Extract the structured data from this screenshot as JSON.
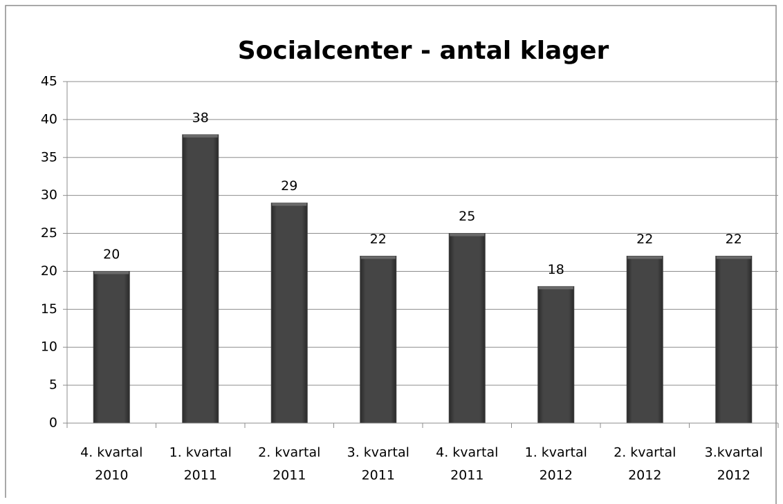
{
  "chart_data": {
    "type": "bar",
    "title": "Socialcenter - antal klager",
    "categories": [
      [
        "4. kvartal",
        "2010"
      ],
      [
        "1. kvartal",
        "2011"
      ],
      [
        "2. kvartal",
        "2011"
      ],
      [
        "3. kvartal",
        "2011"
      ],
      [
        "4. kvartal",
        "2011"
      ],
      [
        "1. kvartal",
        "2012"
      ],
      [
        "2. kvartal",
        "2012"
      ],
      [
        "3.kvartal",
        "2012"
      ]
    ],
    "values": [
      20,
      38,
      29,
      22,
      25,
      18,
      22,
      22
    ],
    "color": "#404040",
    "ylim": [
      0,
      45
    ],
    "yticks": [
      0,
      5,
      10,
      15,
      20,
      25,
      30,
      35,
      40,
      45
    ],
    "grid": true
  }
}
